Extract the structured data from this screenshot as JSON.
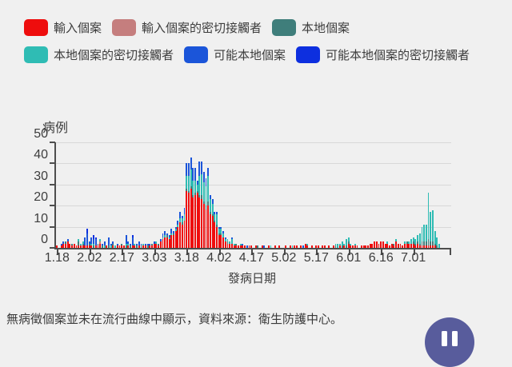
{
  "note": "無病徵個案並未在流行曲線中顯示，資料來源：衛生防護中心。",
  "pause_button": {
    "name": "pause"
  },
  "colors": {
    "background": "#f0f0f0",
    "axis": "#4d4d4d",
    "grid": "#d8d8d8",
    "pause_button": "#585c9c"
  },
  "legend": {
    "items": [
      {
        "label": "輸入個案",
        "color": "#ee0d0d"
      },
      {
        "label": "輸入個案的密切接觸者",
        "color": "#c57e7e"
      },
      {
        "label": "本地個案",
        "color": "#3f7e7b"
      },
      {
        "label": "本地個案的密切接觸者",
        "color": "#2fbcb4"
      },
      {
        "label": "可能本地個案",
        "color": "#1b55d9"
      },
      {
        "label": "可能本地個案的密切接觸者",
        "color": "#0d2fdf"
      }
    ]
  },
  "chart_data": {
    "type": "bar",
    "stacked": true,
    "title": "",
    "ylabel": "病例",
    "xlabel": "發病日期",
    "ylim": [
      0,
      50
    ],
    "yticks": [
      0,
      10,
      20,
      30,
      40,
      50
    ],
    "grid": true,
    "legend_position": "top",
    "xticks": [
      "1.18",
      "2.02",
      "2.17",
      "3.03",
      "3.18",
      "4.02",
      "4.17",
      "5.02",
      "5.17",
      "6.01",
      "6.16",
      "7.01"
    ],
    "xtick_day_interval": 15,
    "total_day_slots": 183,
    "series_names": [
      "輸入個案",
      "輸入個案的密切接觸者",
      "本地個案",
      "本地個案的密切接觸者",
      "可能本地個案",
      "可能本地個案的密切接觸者"
    ],
    "series_colors": [
      "#ee0d0d",
      "#c57e7e",
      "#3f7e7b",
      "#2fbcb4",
      "#1b55d9",
      "#0d2fdf"
    ],
    "bars_format": [
      "date",
      "imported",
      "imported_contacts",
      "local",
      "local_contacts",
      "possible_local",
      "possible_local_contacts"
    ],
    "bars": [
      [
        "1.18",
        1,
        0,
        0,
        0,
        0,
        0
      ],
      [
        "1.19",
        0,
        0,
        0,
        0,
        0,
        0
      ],
      [
        "1.20",
        1,
        0,
        0,
        0,
        1,
        0
      ],
      [
        "1.21",
        2,
        0,
        0,
        0,
        1,
        0
      ],
      [
        "1.22",
        2,
        0,
        1,
        0,
        0,
        0
      ],
      [
        "1.23",
        3,
        0,
        0,
        0,
        1,
        0
      ],
      [
        "1.24",
        2,
        0,
        0,
        0,
        0,
        0
      ],
      [
        "1.25",
        1,
        0,
        1,
        0,
        0,
        0
      ],
      [
        "1.26",
        2,
        0,
        0,
        0,
        0,
        0
      ],
      [
        "1.27",
        1,
        0,
        0,
        0,
        0,
        0
      ],
      [
        "1.28",
        1,
        0,
        2,
        1,
        0,
        0
      ],
      [
        "1.29",
        1,
        0,
        0,
        1,
        0,
        0
      ],
      [
        "1.30",
        1,
        0,
        1,
        1,
        0,
        0
      ],
      [
        "1.31",
        1,
        0,
        0,
        0,
        4,
        0
      ],
      [
        "2.01",
        1,
        0,
        0,
        0,
        6,
        2
      ],
      [
        "2.02",
        1,
        0,
        1,
        0,
        1,
        0
      ],
      [
        "2.03",
        1,
        0,
        0,
        1,
        3,
        0
      ],
      [
        "2.04",
        0,
        0,
        1,
        1,
        2,
        2
      ],
      [
        "2.05",
        1,
        0,
        0,
        0,
        3,
        1
      ],
      [
        "2.06",
        1,
        0,
        1,
        0,
        0,
        0
      ],
      [
        "2.07",
        2,
        1,
        0,
        1,
        0,
        0
      ],
      [
        "2.08",
        0,
        0,
        1,
        0,
        1,
        0
      ],
      [
        "2.09",
        0,
        0,
        0,
        1,
        2,
        0
      ],
      [
        "2.10",
        1,
        0,
        0,
        0,
        0,
        0
      ],
      [
        "2.11",
        0,
        0,
        1,
        0,
        4,
        0
      ],
      [
        "2.12",
        0,
        0,
        0,
        1,
        1,
        0
      ],
      [
        "2.13",
        1,
        0,
        1,
        0,
        1,
        0
      ],
      [
        "2.14",
        0,
        0,
        0,
        1,
        0,
        0
      ],
      [
        "2.15",
        1,
        0,
        0,
        0,
        1,
        0
      ],
      [
        "2.16",
        1,
        0,
        0,
        0,
        0,
        0
      ],
      [
        "2.17",
        1,
        0,
        1,
        0,
        0,
        0
      ],
      [
        "2.18",
        1,
        0,
        0,
        0,
        0,
        0
      ],
      [
        "2.19",
        0,
        0,
        1,
        1,
        4,
        0
      ],
      [
        "2.20",
        1,
        0,
        0,
        1,
        1,
        0
      ],
      [
        "2.21",
        0,
        0,
        1,
        0,
        1,
        0
      ],
      [
        "2.22",
        1,
        0,
        0,
        0,
        4,
        1
      ],
      [
        "2.23",
        1,
        0,
        0,
        1,
        0,
        0
      ],
      [
        "2.24",
        0,
        0,
        1,
        0,
        1,
        0
      ],
      [
        "2.25",
        1,
        0,
        0,
        0,
        2,
        0
      ],
      [
        "2.26",
        0,
        0,
        1,
        0,
        1,
        0
      ],
      [
        "2.27",
        1,
        0,
        0,
        1,
        0,
        0
      ],
      [
        "2.28",
        1,
        0,
        0,
        0,
        1,
        0
      ],
      [
        "2.29",
        0,
        0,
        1,
        0,
        1,
        0
      ],
      [
        "3.01",
        1,
        0,
        0,
        0,
        1,
        0
      ],
      [
        "3.02",
        1,
        0,
        1,
        0,
        0,
        0
      ],
      [
        "3.03",
        2,
        0,
        0,
        0,
        1,
        0
      ],
      [
        "3.04",
        2,
        0,
        0,
        1,
        0,
        0
      ],
      [
        "3.05",
        1,
        0,
        1,
        0,
        0,
        0
      ],
      [
        "3.06",
        3,
        0,
        0,
        0,
        1,
        0
      ],
      [
        "3.07",
        4,
        0,
        0,
        1,
        2,
        0
      ],
      [
        "3.08",
        5,
        0,
        0,
        1,
        2,
        0
      ],
      [
        "3.09",
        5,
        0,
        1,
        0,
        1,
        0
      ],
      [
        "3.10",
        4,
        0,
        0,
        1,
        1,
        0
      ],
      [
        "3.11",
        6,
        0,
        0,
        1,
        2,
        0
      ],
      [
        "3.12",
        6,
        0,
        1,
        0,
        1,
        0
      ],
      [
        "3.13",
        8,
        0,
        0,
        1,
        1,
        0
      ],
      [
        "3.14",
        10,
        0,
        0,
        1,
        2,
        0
      ],
      [
        "3.15",
        12,
        0,
        0,
        2,
        3,
        0
      ],
      [
        "3.16",
        11,
        0,
        1,
        2,
        1,
        0
      ],
      [
        "3.17",
        13,
        0,
        0,
        3,
        3,
        0
      ],
      [
        "3.18",
        27,
        0,
        1,
        6,
        6,
        0
      ],
      [
        "3.19",
        26,
        0,
        1,
        7,
        6,
        0
      ],
      [
        "3.20",
        28,
        0,
        1,
        8,
        6,
        0
      ],
      [
        "3.21",
        24,
        0,
        1,
        7,
        6,
        0
      ],
      [
        "3.22",
        25,
        0,
        1,
        6,
        6,
        0
      ],
      [
        "3.23",
        26,
        0,
        1,
        3,
        2,
        0
      ],
      [
        "3.24",
        24,
        0,
        1,
        9,
        7,
        0
      ],
      [
        "3.25",
        23,
        0,
        2,
        10,
        6,
        0
      ],
      [
        "3.26",
        21,
        0,
        1,
        9,
        5,
        0
      ],
      [
        "3.27",
        18,
        0,
        2,
        9,
        4,
        0
      ],
      [
        "3.28",
        20,
        0,
        2,
        12,
        4,
        0
      ],
      [
        "3.29",
        16,
        0,
        1,
        6,
        2,
        0
      ],
      [
        "3.30",
        15,
        0,
        1,
        5,
        2,
        0
      ],
      [
        "3.31",
        12,
        0,
        1,
        3,
        1,
        0
      ],
      [
        "4.01",
        10,
        0,
        1,
        5,
        1,
        0
      ],
      [
        "4.02",
        6,
        0,
        1,
        2,
        1,
        0
      ],
      [
        "4.03",
        6,
        0,
        1,
        2,
        1,
        0
      ],
      [
        "4.04",
        5,
        0,
        0,
        2,
        1,
        0
      ],
      [
        "4.05",
        3,
        0,
        0,
        1,
        1,
        0
      ],
      [
        "4.06",
        2,
        0,
        1,
        1,
        0,
        0
      ],
      [
        "4.07",
        2,
        0,
        0,
        1,
        0,
        0
      ],
      [
        "4.08",
        2,
        0,
        0,
        2,
        1,
        0
      ],
      [
        "4.09",
        1,
        0,
        0,
        1,
        0,
        0
      ],
      [
        "4.10",
        1,
        0,
        1,
        0,
        0,
        0
      ],
      [
        "4.11",
        1,
        0,
        0,
        0,
        0,
        0
      ],
      [
        "4.12",
        1,
        0,
        0,
        1,
        0,
        0
      ],
      [
        "4.13",
        1,
        0,
        0,
        0,
        1,
        0
      ],
      [
        "4.14",
        1,
        0,
        0,
        0,
        0,
        0
      ],
      [
        "4.15",
        0,
        0,
        0,
        0,
        1,
        0
      ],
      [
        "4.16",
        1,
        0,
        0,
        0,
        0,
        0
      ],
      [
        "4.17",
        1,
        0,
        0,
        0,
        0,
        0
      ],
      [
        "4.18",
        0,
        0,
        0,
        0,
        0,
        0
      ],
      [
        "4.19",
        1,
        0,
        0,
        0,
        0,
        0
      ],
      [
        "4.20",
        0,
        0,
        1,
        0,
        0,
        0
      ],
      [
        "4.21",
        0,
        0,
        0,
        0,
        0,
        0
      ],
      [
        "4.22",
        1,
        0,
        0,
        0,
        0,
        0
      ],
      [
        "4.23",
        0,
        0,
        0,
        0,
        1,
        0
      ],
      [
        "4.24",
        0,
        0,
        0,
        0,
        0,
        0
      ],
      [
        "4.25",
        1,
        0,
        0,
        0,
        0,
        0
      ],
      [
        "4.26",
        0,
        0,
        0,
        1,
        0,
        0
      ],
      [
        "4.27",
        0,
        0,
        0,
        0,
        0,
        0
      ],
      [
        "4.28",
        1,
        0,
        0,
        0,
        0,
        0
      ],
      [
        "4.29",
        0,
        0,
        0,
        0,
        0,
        0
      ],
      [
        "4.30",
        1,
        0,
        0,
        0,
        0,
        0
      ],
      [
        "5.01",
        0,
        0,
        0,
        0,
        0,
        0
      ],
      [
        "5.02",
        0,
        0,
        0,
        0,
        0,
        0
      ],
      [
        "5.03",
        1,
        0,
        0,
        0,
        0,
        0
      ],
      [
        "5.04",
        0,
        0,
        0,
        0,
        0,
        0
      ],
      [
        "5.05",
        1,
        0,
        0,
        0,
        0,
        0
      ],
      [
        "5.06",
        0,
        0,
        0,
        1,
        0,
        0
      ],
      [
        "5.07",
        1,
        0,
        0,
        0,
        0,
        0
      ],
      [
        "5.08",
        1,
        0,
        0,
        0,
        0,
        0
      ],
      [
        "5.09",
        0,
        0,
        0,
        0,
        0,
        0
      ],
      [
        "5.10",
        1,
        0,
        0,
        0,
        0,
        0
      ],
      [
        "5.11",
        0,
        0,
        0,
        0,
        1,
        0
      ],
      [
        "5.12",
        2,
        0,
        0,
        0,
        0,
        0
      ],
      [
        "5.13",
        1,
        0,
        0,
        1,
        0,
        0
      ],
      [
        "5.14",
        0,
        0,
        0,
        0,
        0,
        0
      ],
      [
        "5.15",
        1,
        0,
        0,
        0,
        0,
        0
      ],
      [
        "5.16",
        0,
        0,
        0,
        0,
        0,
        0
      ],
      [
        "5.17",
        1,
        0,
        0,
        0,
        0,
        0
      ],
      [
        "5.18",
        1,
        0,
        0,
        0,
        0,
        0
      ],
      [
        "5.19",
        0,
        0,
        0,
        0,
        0,
        0
      ],
      [
        "5.20",
        1,
        0,
        0,
        0,
        0,
        0
      ],
      [
        "5.21",
        1,
        0,
        0,
        0,
        0,
        0
      ],
      [
        "5.22",
        0,
        0,
        0,
        0,
        0,
        0
      ],
      [
        "5.23",
        1,
        0,
        0,
        0,
        0,
        0
      ],
      [
        "5.24",
        0,
        0,
        0,
        0,
        0,
        0
      ],
      [
        "5.25",
        1,
        0,
        0,
        0,
        0,
        0
      ],
      [
        "5.26",
        0,
        0,
        1,
        1,
        0,
        0
      ],
      [
        "5.27",
        0,
        0,
        0,
        2,
        0,
        0
      ],
      [
        "5.28",
        1,
        0,
        0,
        1,
        0,
        0
      ],
      [
        "5.29",
        0,
        0,
        1,
        2,
        0,
        0
      ],
      [
        "5.30",
        1,
        0,
        0,
        1,
        0,
        0
      ],
      [
        "5.31",
        0,
        0,
        1,
        3,
        0,
        0
      ],
      [
        "6.01",
        2,
        0,
        1,
        2,
        0,
        0
      ],
      [
        "6.02",
        1,
        0,
        0,
        1,
        0,
        0
      ],
      [
        "6.03",
        1,
        0,
        0,
        0,
        0,
        0
      ],
      [
        "6.04",
        1,
        0,
        0,
        1,
        0,
        0
      ],
      [
        "6.05",
        1,
        0,
        0,
        0,
        0,
        0
      ],
      [
        "6.06",
        0,
        0,
        0,
        0,
        0,
        0
      ],
      [
        "6.07",
        1,
        0,
        0,
        0,
        0,
        0
      ],
      [
        "6.08",
        1,
        0,
        0,
        0,
        0,
        0
      ],
      [
        "6.09",
        1,
        0,
        0,
        0,
        0,
        0
      ],
      [
        "6.10",
        1,
        0,
        0,
        0,
        0,
        0
      ],
      [
        "6.11",
        2,
        0,
        0,
        0,
        0,
        0
      ],
      [
        "6.12",
        2,
        0,
        0,
        0,
        0,
        0
      ],
      [
        "6.13",
        3,
        0,
        0,
        0,
        0,
        0
      ],
      [
        "6.14",
        3,
        0,
        0,
        0,
        0,
        0
      ],
      [
        "6.15",
        2,
        0,
        0,
        0,
        0,
        0
      ],
      [
        "6.16",
        3,
        0,
        0,
        0,
        0,
        0
      ],
      [
        "6.17",
        3,
        0,
        0,
        0,
        0,
        0
      ],
      [
        "6.18",
        2,
        0,
        0,
        0,
        0,
        0
      ],
      [
        "6.19",
        2,
        0,
        0,
        1,
        0,
        0
      ],
      [
        "6.20",
        1,
        0,
        0,
        0,
        0,
        0
      ],
      [
        "6.21",
        2,
        0,
        0,
        0,
        0,
        0
      ],
      [
        "6.22",
        1,
        0,
        1,
        0,
        0,
        0
      ],
      [
        "6.23",
        3,
        0,
        0,
        1,
        0,
        0
      ],
      [
        "6.24",
        2,
        0,
        0,
        0,
        0,
        0
      ],
      [
        "6.25",
        2,
        0,
        0,
        0,
        0,
        0
      ],
      [
        "6.26",
        1,
        0,
        0,
        0,
        0,
        0
      ],
      [
        "6.27",
        2,
        0,
        0,
        1,
        0,
        0
      ],
      [
        "6.28",
        2,
        0,
        1,
        0,
        0,
        0
      ],
      [
        "6.29",
        2,
        0,
        0,
        1,
        0,
        0
      ],
      [
        "6.30",
        2,
        0,
        0,
        2,
        0,
        0
      ],
      [
        "7.01",
        2,
        0,
        1,
        2,
        0,
        0
      ],
      [
        "7.02",
        1,
        0,
        1,
        2,
        0,
        0
      ],
      [
        "7.03",
        2,
        0,
        1,
        3,
        0,
        0
      ],
      [
        "7.04",
        1,
        0,
        1,
        5,
        0,
        0
      ],
      [
        "7.05",
        1,
        0,
        2,
        7,
        0,
        0
      ],
      [
        "7.06",
        1,
        0,
        2,
        8,
        0,
        0
      ],
      [
        "7.07",
        1,
        0,
        2,
        8,
        0,
        0
      ],
      [
        "7.08",
        1,
        0,
        3,
        22,
        0,
        0
      ],
      [
        "7.09",
        1,
        0,
        2,
        14,
        0,
        0
      ],
      [
        "7.10",
        1,
        0,
        2,
        15,
        0,
        0
      ],
      [
        "7.11",
        1,
        0,
        1,
        6,
        0,
        0
      ],
      [
        "7.12",
        0,
        0,
        1,
        4,
        0,
        0
      ],
      [
        "7.13",
        0,
        0,
        0,
        2,
        0,
        0
      ]
    ]
  }
}
